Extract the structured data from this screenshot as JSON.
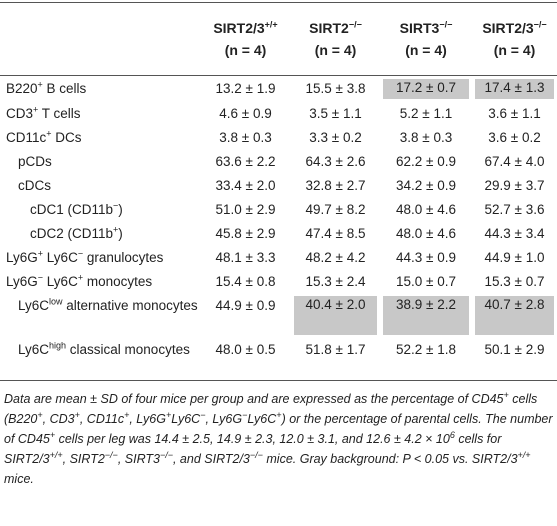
{
  "table": {
    "header": [
      {
        "name": "SIRT2/3",
        "sup": "+/+",
        "n": "(n = 4)"
      },
      {
        "name": "SIRT2",
        "sup": "−/−",
        "n": "(n = 4)"
      },
      {
        "name": "SIRT3",
        "sup": "−/−",
        "n": "(n = 4)"
      },
      {
        "name": "SIRT2/3",
        "sup": "−/−",
        "n": "(n = 4)"
      }
    ],
    "rows": [
      {
        "label": [
          "B220",
          "+",
          " B cells"
        ],
        "level": 0,
        "cells": [
          "13.2 ± 1.9",
          "15.5 ± 3.8",
          "17.2 ± 0.7",
          "17.4 ± 1.3"
        ],
        "gray": [
          false,
          false,
          true,
          true
        ]
      },
      {
        "label": [
          "CD3",
          "+",
          " T cells"
        ],
        "level": 0,
        "cells": [
          "4.6 ± 0.9",
          "3.5 ± 1.1",
          "5.2 ± 1.1",
          "3.6 ± 1.1"
        ],
        "gray": [
          false,
          false,
          false,
          false
        ]
      },
      {
        "label": [
          "CD11c",
          "+",
          " DCs"
        ],
        "level": 0,
        "cells": [
          "3.8 ± 0.3",
          "3.3 ± 0.2",
          "3.8 ± 0.3",
          "3.6 ± 0.2"
        ],
        "gray": [
          false,
          false,
          false,
          false
        ]
      },
      {
        "label": [
          "pCDs"
        ],
        "level": 1,
        "cells": [
          "63.6 ± 2.2",
          "64.3 ± 2.6",
          "62.2 ± 0.9",
          "67.4 ± 4.0"
        ],
        "gray": [
          false,
          false,
          false,
          false
        ]
      },
      {
        "label": [
          "cDCs"
        ],
        "level": 1,
        "cells": [
          "33.4 ± 2.0",
          "32.8 ± 2.7",
          "34.2 ± 0.9",
          "29.9 ± 3.7"
        ],
        "gray": [
          false,
          false,
          false,
          false
        ]
      },
      {
        "label": [
          "cDC1 (CD11b",
          "−",
          ")"
        ],
        "level": 2,
        "cells": [
          "51.0 ± 2.9",
          "49.7 ± 8.2",
          "48.0 ± 4.6",
          "52.7 ± 3.6"
        ],
        "gray": [
          false,
          false,
          false,
          false
        ]
      },
      {
        "label": [
          "cDC2 (CD11b",
          "+",
          ")"
        ],
        "level": 2,
        "cells": [
          "45.8 ± 2.9",
          "47.4 ± 8.5",
          "48.0 ± 4.6",
          "44.3 ± 3.4"
        ],
        "gray": [
          false,
          false,
          false,
          false
        ]
      },
      {
        "label": [
          "Ly6G",
          "+",
          " Ly6C",
          "−",
          " granulocytes"
        ],
        "level": 0,
        "cells": [
          "48.1 ± 3.3",
          "48.2 ± 4.2",
          "44.3 ± 0.9",
          "44.9 ± 1.0"
        ],
        "gray": [
          false,
          false,
          false,
          false
        ]
      },
      {
        "label": [
          "Ly6G",
          "−",
          " Ly6C",
          "+",
          " monocytes"
        ],
        "level": 0,
        "cells": [
          "15.4 ± 0.8",
          "15.3 ± 2.4",
          "15.0 ± 0.7",
          "15.3 ± 0.7"
        ],
        "gray": [
          false,
          false,
          false,
          false
        ]
      },
      {
        "label": [
          "Ly6C",
          "low",
          " alternative monocytes"
        ],
        "level": 1,
        "cells": [
          "44.9 ± 0.9",
          "40.4 ± 2.0",
          "38.9 ± 2.2",
          "40.7 ± 2.8"
        ],
        "gray": [
          false,
          true,
          true,
          true
        ]
      },
      {
        "label": [
          "Ly6C",
          "high",
          " classical monocytes"
        ],
        "level": 1,
        "cells": [
          "48.0 ± 0.5",
          "51.8 ± 1.7",
          "52.2 ± 1.8",
          "50.1 ± 2.9"
        ],
        "gray": [
          false,
          false,
          false,
          false
        ]
      }
    ],
    "footnote": [
      "Data are mean ± SD of four mice per group and are expressed as the percentage of CD45",
      "+",
      " cells (B220",
      "+",
      ", CD3",
      "+",
      ", CD11c",
      "+",
      ", Ly6G",
      "+",
      "Ly6C",
      "−",
      ", Ly6G",
      "−",
      "Ly6C",
      "+",
      ") or the percentage of parental cells. The number of CD45",
      "+",
      " cells per leg was 14.4 ± 2.5, 14.9 ± 2.3, 12.0 ± 3.1, and 12.6 ± 4.2 × 10",
      "6",
      " cells for SIRT2/3",
      "+/+",
      ", SIRT2",
      "−/−",
      ", SIRT3",
      "−/−",
      ", and SIRT2/3",
      "−/−",
      " mice. Gray background: P < 0.05 vs. SIRT2/3",
      "+/+",
      " mice."
    ]
  }
}
